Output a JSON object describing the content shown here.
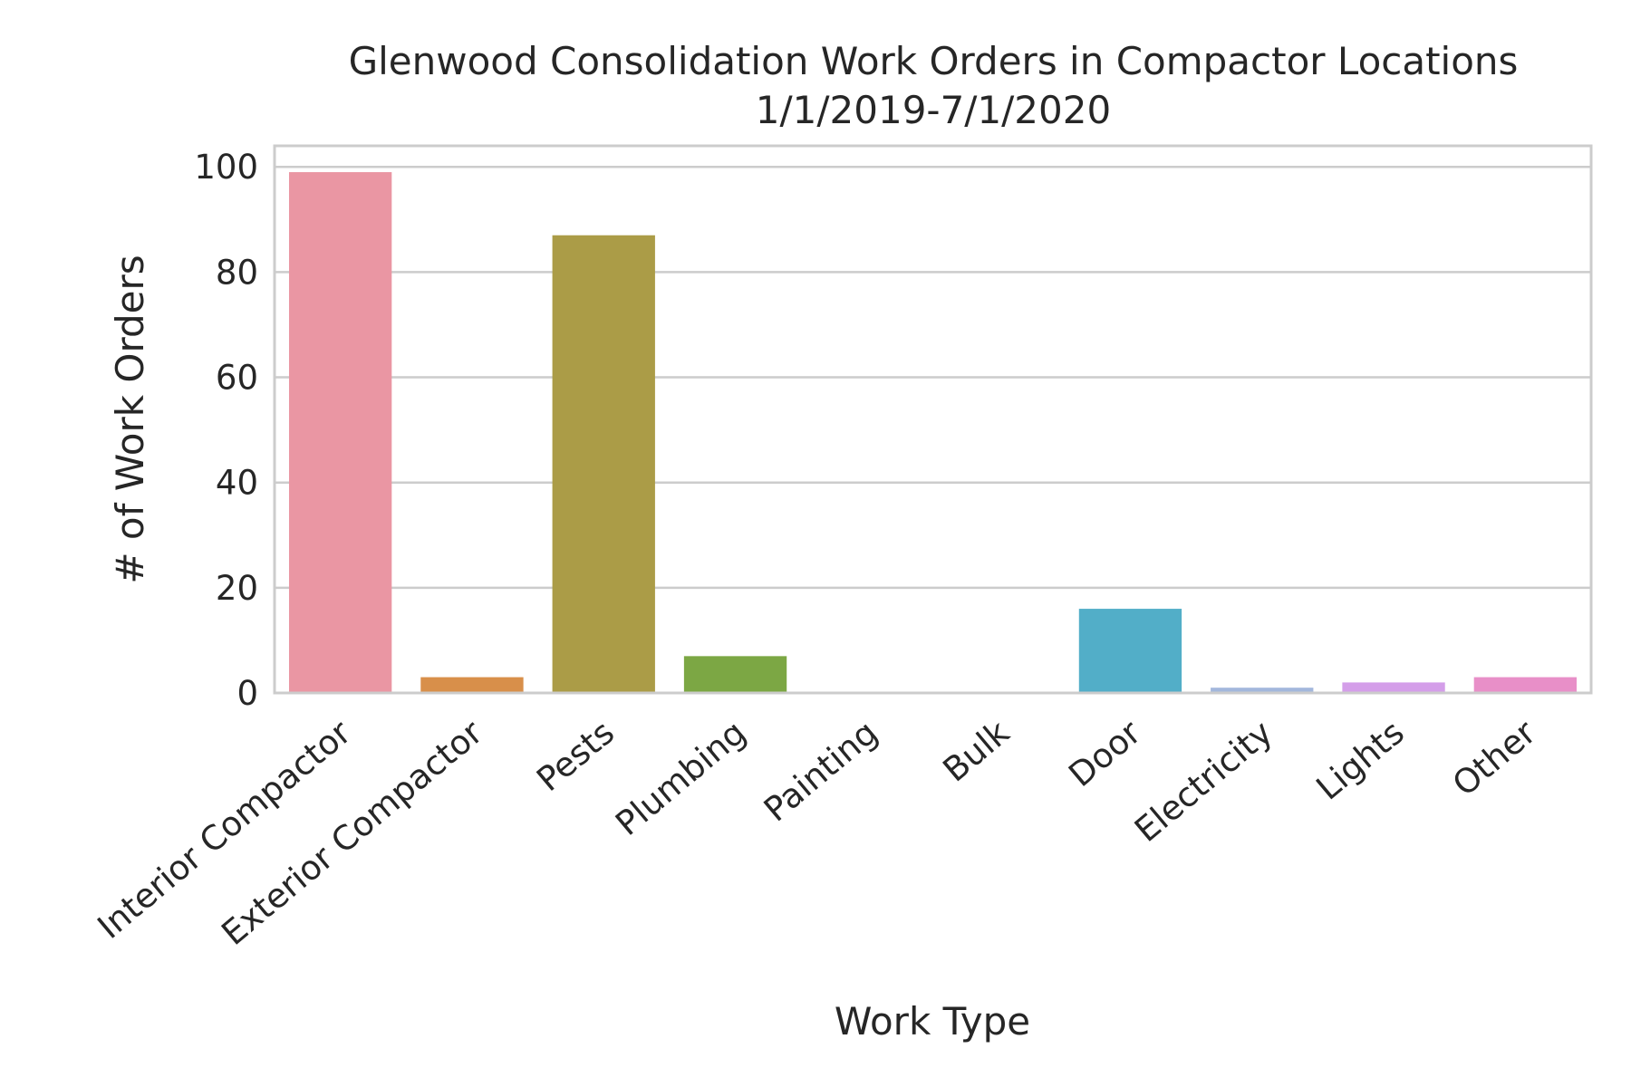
{
  "chart_data": {
    "type": "bar",
    "title": "Glenwood Consolidation Work Orders in Compactor Locations",
    "subtitle": "1/1/2019-7/1/2020",
    "xlabel": "Work Type",
    "ylabel": "# of Work Orders",
    "categories": [
      "Interior Compactor",
      "Exterior Compactor",
      "Pests",
      "Plumbing",
      "Painting",
      "Bulk",
      "Door",
      "Electricity",
      "Lights",
      "Other"
    ],
    "values": [
      99,
      3,
      87,
      7,
      0,
      0,
      16,
      1,
      2,
      3
    ],
    "colors": [
      "#ea96a3",
      "#d88f4a",
      "#ab9c47",
      "#7ca744",
      "#59ae83",
      "#5aaea9",
      "#52aec8",
      "#a3b7dc",
      "#d49ee9",
      "#e88fc8"
    ],
    "ylim": [
      0,
      104
    ],
    "yticks": [
      0,
      20,
      40,
      60,
      80,
      100
    ],
    "grid": true,
    "legend": "none"
  }
}
